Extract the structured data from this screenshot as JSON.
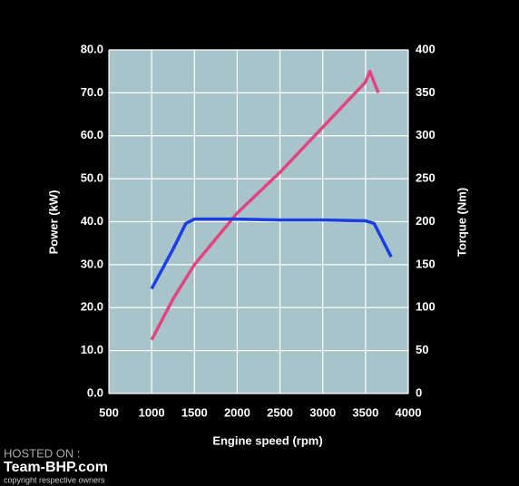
{
  "chart_data": {
    "type": "line",
    "xlabel": "Engine speed (rpm)",
    "ylabel": "Power (kW)",
    "y2label": "Torque (Nm)",
    "xlim": [
      500,
      4000
    ],
    "xticks": [
      500,
      1000,
      1500,
      2000,
      2500,
      3000,
      3500,
      4000
    ],
    "ylim": [
      0,
      80
    ],
    "yticks": [
      {
        "value": 0,
        "label": "0.0"
      },
      {
        "value": 10,
        "label": "10.0"
      },
      {
        "value": 20,
        "label": "20.0"
      },
      {
        "value": 30,
        "label": "30.0"
      },
      {
        "value": 40,
        "label": "40.0"
      },
      {
        "value": 50,
        "label": "50.0"
      },
      {
        "value": 60,
        "label": "60.0"
      },
      {
        "value": 70,
        "label": "70.0"
      },
      {
        "value": 80,
        "label": "80.0"
      }
    ],
    "y2lim": [
      0,
      400
    ],
    "y2ticks": [
      0,
      50,
      100,
      150,
      200,
      250,
      300,
      350,
      400
    ],
    "grid": true,
    "series": [
      {
        "name": "Power",
        "color": "#e0457f",
        "x": [
          1000,
          1250,
          1500,
          2000,
          2500,
          3000,
          3500,
          3550,
          3650
        ],
        "values": [
          12.5,
          22,
          30,
          42,
          51.5,
          62,
          72.5,
          75,
          70
        ]
      },
      {
        "name": "Torque",
        "color": "#1a3fe0",
        "axis": "y2",
        "x": [
          1000,
          1250,
          1400,
          1500,
          2000,
          2500,
          3000,
          3500,
          3600,
          3800
        ],
        "values": [
          122,
          168,
          198,
          203,
          203,
          202,
          202,
          201,
          198,
          159
        ]
      }
    ],
    "watermark": {
      "hosted": "HOSTED ON :",
      "site": "Team-BHP.com",
      "copyright": "copyright respective owners"
    }
  }
}
